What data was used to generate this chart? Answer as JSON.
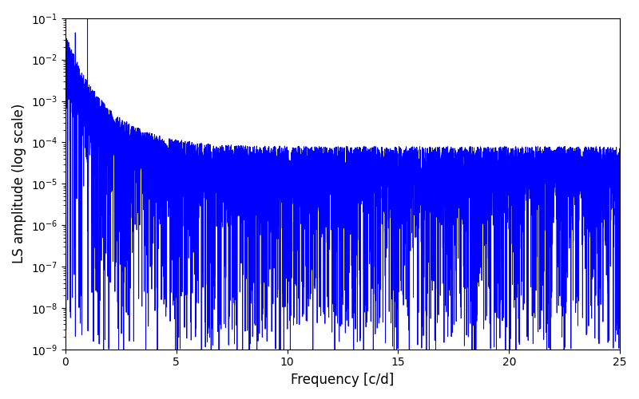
{
  "xlabel": "Frequency [c/d]",
  "ylabel": "LS amplitude (log scale)",
  "xlim": [
    0,
    25
  ],
  "ylim_log_min": -9,
  "ylim_log_max": -1,
  "line_color": "#0000ff",
  "line_width": 0.7,
  "background_color": "#ffffff",
  "n_points": 8000,
  "seed": 77,
  "peak_amplitude_log": -1.35,
  "noise_floor_log": -4.1,
  "decay_rate": 0.55,
  "min_dip_log": -9.2
}
